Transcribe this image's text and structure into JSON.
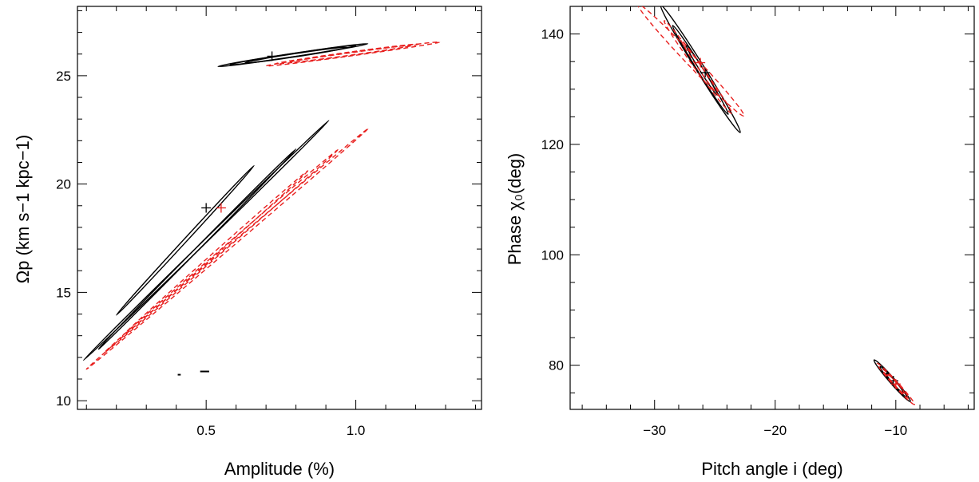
{
  "chart_data": [
    {
      "type": "contour",
      "xlabel": "Amplitude (%)",
      "ylabel": "Ωp (km s−1 kpc−1)",
      "xlim": [
        0.07,
        1.42
      ],
      "ylim": [
        9.6,
        28.2
      ],
      "xticks": [
        0.5,
        1.0
      ],
      "xtick_labels": [
        "0.5",
        "1.0"
      ],
      "yticks": [
        10,
        15,
        20,
        25
      ],
      "ytick_labels": [
        "10",
        "15",
        "20",
        "25"
      ],
      "series": [
        {
          "style": "solid",
          "color": "#000000",
          "contours": [
            {
              "cx": 0.79,
              "cy": 25.95,
              "a": 0.25,
              "b": 0.08,
              "slope": 2.1
            },
            {
              "cx": 0.79,
              "cy": 25.95,
              "a": 0.21,
              "b": 0.055,
              "slope": 2.1
            },
            {
              "cx": 0.8,
              "cy": 25.95,
              "a": 0.17,
              "b": 0.035,
              "slope": 2.1
            },
            {
              "cx": 0.5,
              "cy": 17.4,
              "a": 0.41,
              "b": 0.055,
              "slope": 13.5
            },
            {
              "cx": 0.47,
              "cy": 17.0,
              "a": 0.33,
              "b": 0.04,
              "slope": 14.0
            },
            {
              "cx": 0.43,
              "cy": 17.4,
              "a": 0.23,
              "b": 0.028,
              "slope": 15.0
            }
          ],
          "markers": [
            {
              "x": 0.5,
              "y": 18.9
            },
            {
              "x": 0.72,
              "y": 25.9
            }
          ]
        },
        {
          "style": "dashed",
          "color": "#e8201f",
          "contours": [
            {
              "cx": 0.99,
              "cy": 26.0,
              "a": 0.29,
              "b": 0.065,
              "slope": 1.9
            },
            {
              "cx": 0.97,
              "cy": 26.0,
              "a": 0.24,
              "b": 0.045,
              "slope": 1.9
            },
            {
              "cx": 0.98,
              "cy": 26.0,
              "a": 0.2,
              "b": 0.03,
              "slope": 1.9
            },
            {
              "cx": 0.57,
              "cy": 17.0,
              "a": 0.47,
              "b": 0.06,
              "slope": 11.8
            },
            {
              "cx": 0.55,
              "cy": 16.9,
              "a": 0.39,
              "b": 0.045,
              "slope": 12.0
            },
            {
              "cx": 0.53,
              "cy": 16.8,
              "a": 0.31,
              "b": 0.03,
              "slope": 12.3
            }
          ],
          "markers": [
            {
              "x": 0.55,
              "y": 18.9
            }
          ]
        }
      ],
      "small_marks": [
        {
          "x1": 0.405,
          "x2": 0.415,
          "y": 11.2
        },
        {
          "x1": 0.48,
          "x2": 0.51,
          "y": 11.35
        }
      ]
    },
    {
      "type": "contour",
      "xlabel": "Pitch angle i (deg)",
      "ylabel": "Phase χ₀(deg)",
      "xlim": [
        -37,
        -3.5
      ],
      "ylim": [
        72,
        145
      ],
      "xticks": [
        -30,
        -20,
        -10
      ],
      "xtick_labels": [
        "−30",
        "−20",
        "−10"
      ],
      "yticks": [
        80,
        100,
        120,
        140
      ],
      "ytick_labels": [
        "80",
        "100",
        "120",
        "140"
      ],
      "series": [
        {
          "style": "solid",
          "color": "#000000",
          "contours": [
            {
              "cx": -26.2,
              "cy": 133.7,
              "a": 3.3,
              "b": 1.4,
              "slope": -3.5
            },
            {
              "cx": -26.2,
              "cy": 133.5,
              "a": 2.3,
              "b": 0.95,
              "slope": -3.5
            },
            {
              "cx": -26.1,
              "cy": 133.5,
              "a": 1.3,
              "b": 0.6,
              "slope": -3.5
            },
            {
              "cx": -10.3,
              "cy": 77.2,
              "a": 1.5,
              "b": 0.75,
              "slope": -2.5
            },
            {
              "cx": -10.2,
              "cy": 77.0,
              "a": 1.1,
              "b": 0.55,
              "slope": -2.5
            },
            {
              "cx": -10.1,
              "cy": 76.8,
              "a": 0.7,
              "b": 0.35,
              "slope": -2.5
            }
          ],
          "markers": [
            {
              "x": -25.8,
              "y": 133
            },
            {
              "x": -10.2,
              "y": 77.2
            }
          ]
        },
        {
          "style": "dashed",
          "color": "#e8201f",
          "contours": [
            {
              "cx": -27.0,
              "cy": 135.3,
              "a": 4.4,
              "b": 1.35,
              "slope": -2.3
            },
            {
              "cx": -26.4,
              "cy": 134.0,
              "a": 2.8,
              "b": 1.0,
              "slope": -3.0
            },
            {
              "cx": -26.2,
              "cy": 133.8,
              "a": 1.6,
              "b": 0.6,
              "slope": -3.2
            },
            {
              "cx": -10.0,
              "cy": 76.6,
              "a": 1.55,
              "b": 0.65,
              "slope": -2.4
            },
            {
              "cx": -10.0,
              "cy": 76.6,
              "a": 1.1,
              "b": 0.45,
              "slope": -2.4
            },
            {
              "cx": -10.0,
              "cy": 76.6,
              "a": 0.7,
              "b": 0.3,
              "slope": -2.4
            }
          ],
          "markers": [
            {
              "x": -26.2,
              "y": 134.8
            },
            {
              "x": -10.0,
              "y": 76.6
            }
          ]
        }
      ],
      "small_marks": []
    }
  ]
}
